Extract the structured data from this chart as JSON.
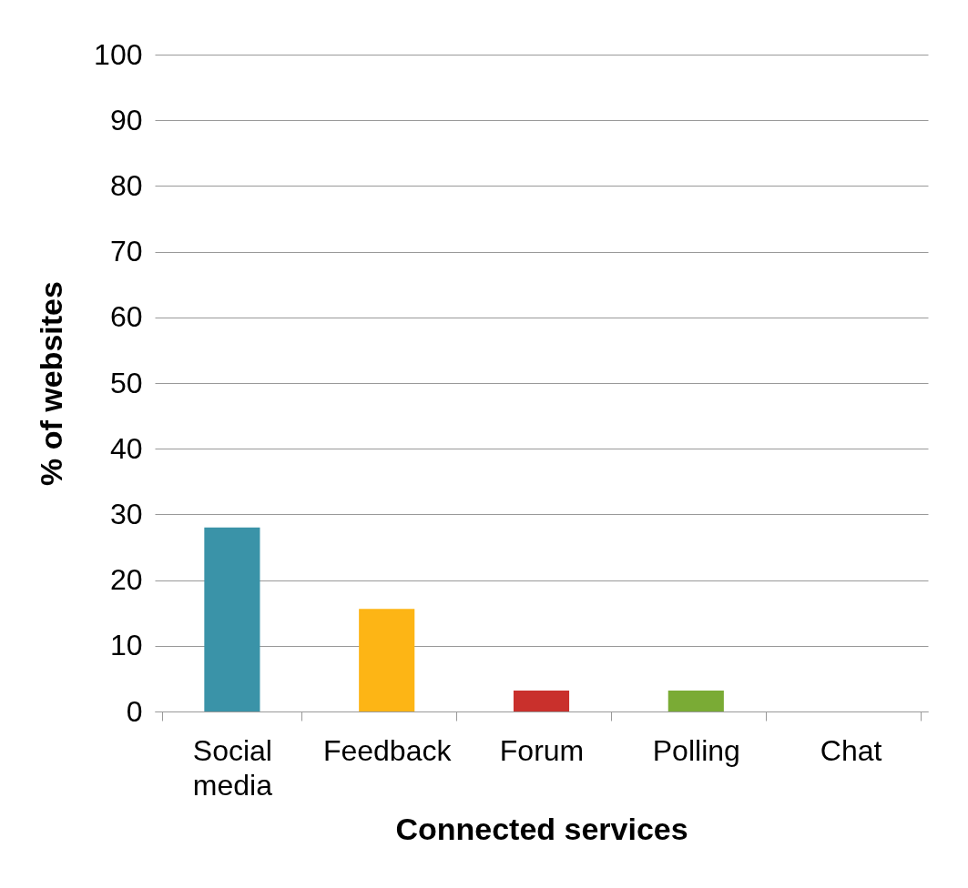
{
  "chart_data": {
    "type": "bar",
    "xlabel": "Connected services",
    "ylabel": "% of websites",
    "categories": [
      "Social media",
      "Feedback",
      "Forum",
      "Polling",
      "Chat"
    ],
    "values": [
      28,
      15.6,
      3.2,
      3.2,
      0
    ],
    "colors": [
      "#3a93a8",
      "#fdb515",
      "#c9302c",
      "#7aab35",
      "#7f7f7f"
    ],
    "ylim": [
      0,
      100
    ],
    "yticks": [
      0,
      10,
      20,
      30,
      40,
      50,
      60,
      70,
      80,
      90,
      100
    ],
    "grid": "y",
    "legend": false
  }
}
